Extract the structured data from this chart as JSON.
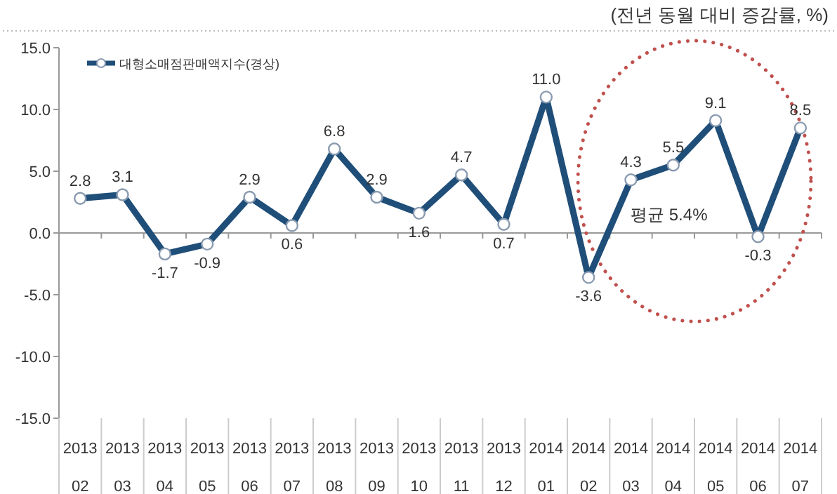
{
  "chart_data": {
    "type": "line",
    "title": "(전년 동월 대비 증감률, %)",
    "categories": [
      "2013 02",
      "2013 03",
      "2013 04",
      "2013 05",
      "2013 06",
      "2013 07",
      "2013 08",
      "2013 09",
      "2013 10",
      "2013 11",
      "2013 12",
      "2014 01",
      "2014 02",
      "2014 03",
      "2014 04",
      "2014 05",
      "2014 06",
      "2014 07"
    ],
    "series": [
      {
        "name": "대형소매점판매액지수(경상)",
        "color": "#1f4e79",
        "values": [
          2.8,
          3.1,
          -1.7,
          -0.9,
          2.9,
          0.6,
          6.8,
          2.9,
          1.6,
          4.7,
          0.7,
          11.0,
          -3.6,
          4.3,
          5.5,
          9.1,
          -0.3,
          8.5
        ]
      }
    ],
    "value_labels": [
      "2.8",
      "3.1",
      "-1.7",
      "-0.9",
      "2.9",
      "0.6",
      "6.8",
      "2.9",
      "1.6",
      "4.7",
      "0.7",
      "11.0",
      "-3.6",
      "4.3",
      "5.5",
      "9.1",
      "-0.3",
      "8.5"
    ],
    "ylim": [
      -15,
      15
    ],
    "yticks": [
      {
        "value": -15,
        "label": "-15.0"
      },
      {
        "value": -10,
        "label": "-10.0"
      },
      {
        "value": -5,
        "label": "-5.0"
      },
      {
        "value": 0,
        "label": "0.0"
      },
      {
        "value": 5,
        "label": "5.0"
      },
      {
        "value": 10,
        "label": "10.0"
      },
      {
        "value": 15,
        "label": "15.0"
      }
    ],
    "annotations": [
      "평균 5.4%"
    ],
    "marker": "circle",
    "line_style": "solid",
    "legend": "top left"
  }
}
